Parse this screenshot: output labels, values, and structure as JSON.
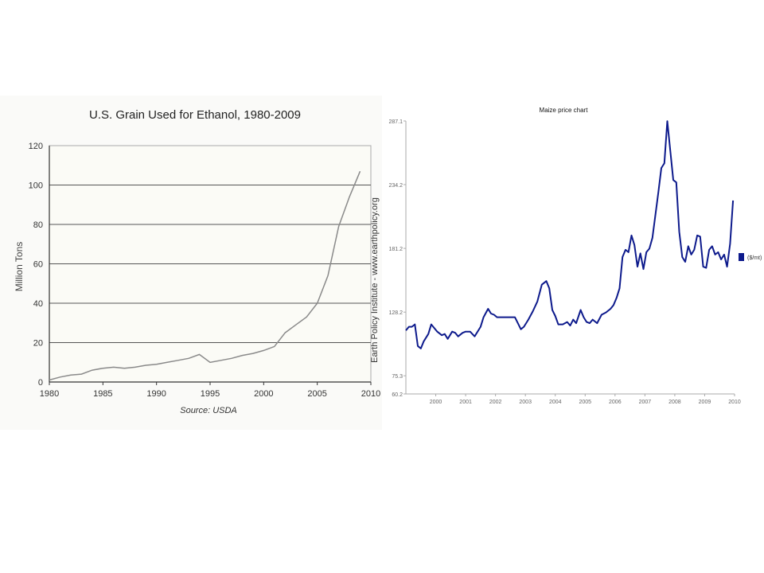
{
  "chart_data": [
    {
      "type": "line",
      "title": "U.S. Grain Used for Ethanol, 1980-2009",
      "ylabel": "Million Tons",
      "xlabel": "",
      "source": "Source: USDA",
      "side_note": "Earth Policy Institute - www.earthpolicy.org",
      "xlim": [
        1980,
        2010
      ],
      "ylim": [
        0,
        120
      ],
      "xticks": [
        1980,
        1985,
        1990,
        1995,
        2000,
        2005,
        2010
      ],
      "yticks": [
        0,
        20,
        40,
        60,
        80,
        100,
        120
      ],
      "grid": true,
      "line_color": "#8a8a8a",
      "series": [
        {
          "x": [
            1980,
            1981,
            1982,
            1983,
            1984,
            1985,
            1986,
            1987,
            1988,
            1989,
            1990,
            1991,
            1992,
            1993,
            1994,
            1995,
            1996,
            1997,
            1998,
            1999,
            2000,
            2001,
            2002,
            2003,
            2004,
            2005,
            2006,
            2007,
            2008,
            2009
          ],
          "values": [
            1,
            2.5,
            3.5,
            4,
            6,
            7,
            7.5,
            7,
            7.5,
            8.5,
            9,
            10,
            11,
            12,
            14,
            10,
            11,
            12,
            13.5,
            14.5,
            16,
            18,
            25,
            29,
            33,
            40,
            54,
            79,
            94,
            107
          ]
        }
      ]
    },
    {
      "type": "line",
      "title": "Maize  price chart",
      "legend": "($/mt)",
      "legend_position": "right",
      "xlim": [
        1999.0,
        2010.0
      ],
      "ylim": [
        60.2,
        287.1
      ],
      "yticks": [
        "60.2",
        "75.3",
        "128.2",
        "181.2",
        "234.2",
        "287.1"
      ],
      "ytick_values": [
        60.2,
        75.3,
        128.2,
        181.2,
        234.2,
        287.1
      ],
      "xticks": [
        "2000",
        "2001",
        "2002",
        "2003",
        "2004",
        "2005",
        "2006",
        "2007",
        "2008",
        "2009",
        "2010"
      ],
      "grid": false,
      "line_color": "#0d1a8c",
      "series": [
        {
          "x": [
            1999.0,
            1999.1,
            1999.2,
            1999.3,
            1999.4,
            1999.5,
            1999.6,
            1999.75,
            1999.85,
            1999.95,
            2000.05,
            2000.2,
            2000.3,
            2000.4,
            2000.55,
            2000.65,
            2000.75,
            2000.9,
            2001.0,
            2001.15,
            2001.3,
            2001.5,
            2001.6,
            2001.75,
            2001.85,
            2001.95,
            2002.05,
            2002.2,
            2002.35,
            2002.5,
            2002.65,
            2002.85,
            2002.95,
            2003.1,
            2003.25,
            2003.4,
            2003.55,
            2003.7,
            2003.8,
            2003.9,
            2004.0,
            2004.1,
            2004.25,
            2004.4,
            2004.5,
            2004.6,
            2004.7,
            2004.85,
            2004.95,
            2005.05,
            2005.15,
            2005.25,
            2005.4,
            2005.55,
            2005.7,
            2005.85,
            2005.95,
            2006.05,
            2006.15,
            2006.25,
            2006.35,
            2006.45,
            2006.55,
            2006.65,
            2006.75,
            2006.85,
            2006.95,
            2007.05,
            2007.15,
            2007.25,
            2007.45,
            2007.55,
            2007.65,
            2007.75,
            2007.85,
            2007.95,
            2008.05,
            2008.15,
            2008.25,
            2008.35,
            2008.45,
            2008.55,
            2008.65,
            2008.75,
            2008.85,
            2008.95,
            2009.05,
            2009.15,
            2009.25,
            2009.35,
            2009.45,
            2009.55,
            2009.65,
            2009.75,
            2009.85,
            2009.95
          ],
          "values": [
            113,
            116,
            116,
            118,
            100,
            98,
            104,
            110,
            118,
            115,
            112,
            109,
            110,
            106,
            112,
            111,
            108,
            111,
            112,
            112,
            108,
            116,
            124,
            131,
            127,
            126,
            124,
            124,
            124,
            124,
            124,
            114,
            116,
            122,
            129,
            137,
            151,
            154,
            148,
            130,
            125,
            118,
            118,
            120,
            117,
            122,
            119,
            130,
            124,
            120,
            119,
            122,
            119,
            126,
            128,
            131,
            134,
            140,
            148,
            174,
            180,
            178,
            192,
            184,
            166,
            177,
            164,
            178,
            181,
            190,
            228,
            248,
            252,
            287,
            262,
            238,
            236,
            195,
            174,
            170,
            183,
            176,
            180,
            192,
            191,
            166,
            165,
            180,
            183,
            176,
            178,
            172,
            176,
            166,
            185,
            221
          ]
        }
      ]
    }
  ]
}
